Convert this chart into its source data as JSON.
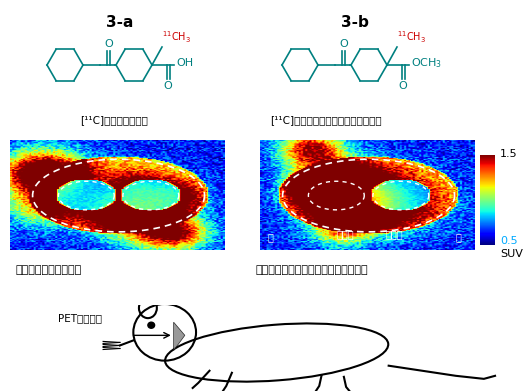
{
  "title_3a": "3-a",
  "title_3b": "3-b",
  "label_3a": "[¹¹C]ケトプロフェン",
  "label_3b": "[¹¹C]ケトプロフェンメチルエステル",
  "caption_3a": "薬剤は脳へ移行しない",
  "caption_3b": "脳へ移行した薬剤が、炎症部位に集積",
  "rat_label": "PET画像断面",
  "colorbar_max": "1.5",
  "colorbar_min": "0.5",
  "colorbar_unit": "SUV",
  "bg_color": "#ffffff",
  "ch3_color": "#cc0000",
  "structure_color": "#008080"
}
